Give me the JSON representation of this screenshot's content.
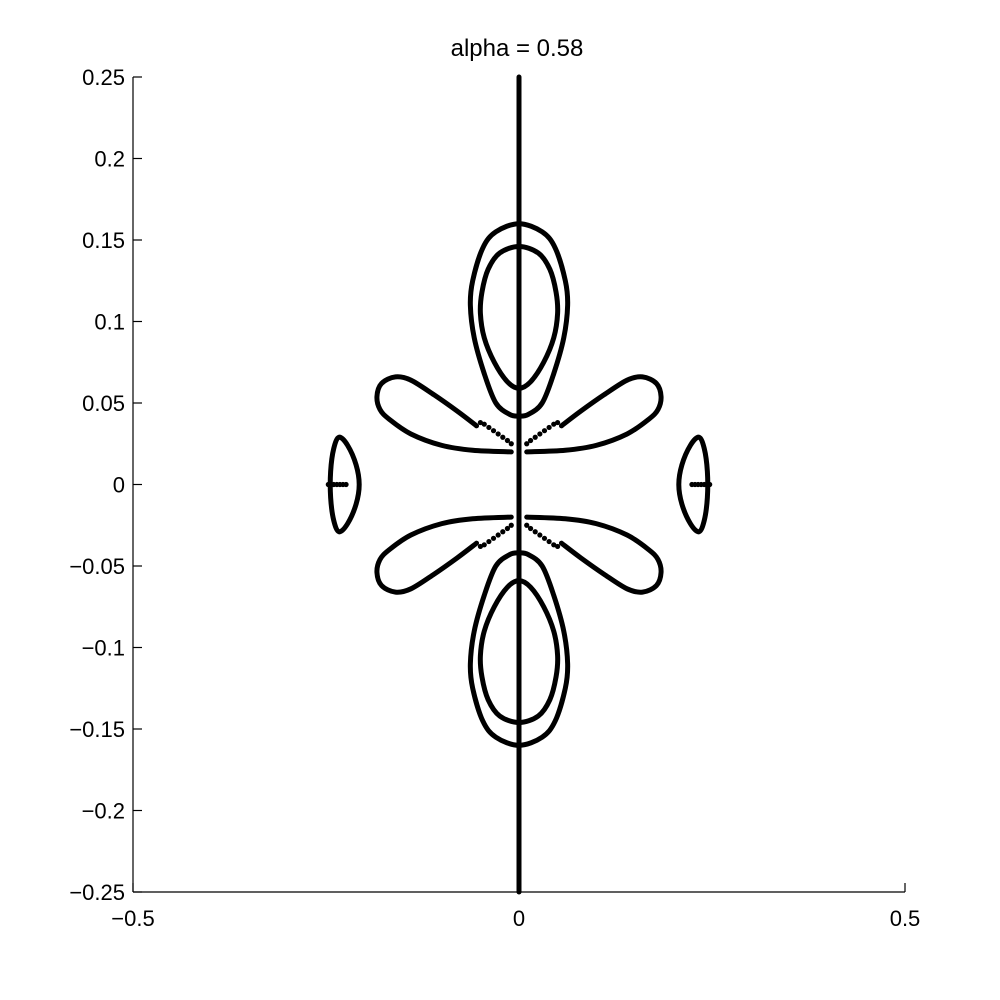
{
  "chart_data": {
    "type": "line",
    "title": "alpha = 0.58",
    "xlabel": "",
    "ylabel": "",
    "xlim": [
      -0.5,
      0.5
    ],
    "ylim": [
      -0.25,
      0.25
    ],
    "grid": false,
    "x_ticks": [
      -0.5,
      0,
      0.5
    ],
    "x_tick_labels": [
      "−0.5",
      "0",
      "0.5"
    ],
    "y_ticks": [
      0.25,
      0.2,
      0.15,
      0.1,
      0.05,
      0,
      -0.05,
      -0.1,
      -0.15,
      -0.2,
      -0.25
    ],
    "y_tick_labels": [
      "0.25",
      "0.2",
      "0.15",
      "0.1",
      "0.05",
      "0",
      "−0.05",
      "−0.1",
      "−0.15",
      "−0.2",
      "−0.25"
    ],
    "series": [
      {
        "id": "vertical-line",
        "x": [
          0,
          0
        ],
        "y": [
          -0.25,
          0.25
        ]
      },
      {
        "id": "upper-outer-loop",
        "x": [
          0,
          0.03,
          0.047,
          0.06,
          0.063,
          0.058,
          0.045,
          0.03,
          0.012,
          0,
          -0.012,
          -0.03,
          -0.045,
          -0.058,
          -0.063,
          -0.06,
          -0.047,
          -0.03,
          0
        ],
        "y": [
          0.16,
          0.155,
          0.145,
          0.125,
          0.11,
          0.09,
          0.068,
          0.05,
          0.043,
          0.042,
          0.043,
          0.05,
          0.068,
          0.09,
          0.11,
          0.125,
          0.145,
          0.155,
          0.16
        ]
      },
      {
        "id": "upper-inner-loop",
        "x": [
          0,
          0.025,
          0.04,
          0.048,
          0.05,
          0.045,
          0.032,
          0.015,
          0,
          -0.015,
          -0.032,
          -0.045,
          -0.05,
          -0.048,
          -0.04,
          -0.025,
          0
        ],
        "y": [
          0.146,
          0.142,
          0.132,
          0.118,
          0.105,
          0.09,
          0.075,
          0.063,
          0.059,
          0.063,
          0.075,
          0.09,
          0.105,
          0.118,
          0.132,
          0.142,
          0.146
        ]
      },
      {
        "id": "lower-outer-loop",
        "x": [
          0,
          0.03,
          0.047,
          0.06,
          0.063,
          0.058,
          0.045,
          0.03,
          0.012,
          0,
          -0.012,
          -0.03,
          -0.045,
          -0.058,
          -0.063,
          -0.06,
          -0.047,
          -0.03,
          0
        ],
        "y": [
          -0.16,
          -0.155,
          -0.145,
          -0.125,
          -0.11,
          -0.09,
          -0.068,
          -0.05,
          -0.043,
          -0.042,
          -0.043,
          -0.05,
          -0.068,
          -0.09,
          -0.11,
          -0.125,
          -0.145,
          -0.155,
          -0.16
        ]
      },
      {
        "id": "lower-inner-loop",
        "x": [
          0,
          0.025,
          0.04,
          0.048,
          0.05,
          0.045,
          0.032,
          0.015,
          0,
          -0.015,
          -0.032,
          -0.045,
          -0.05,
          -0.048,
          -0.04,
          -0.025,
          0
        ],
        "y": [
          -0.146,
          -0.142,
          -0.132,
          -0.118,
          -0.105,
          -0.09,
          -0.075,
          -0.063,
          -0.059,
          -0.063,
          -0.075,
          -0.09,
          -0.105,
          -0.118,
          -0.132,
          -0.142,
          -0.146
        ]
      },
      {
        "id": "upper-right-petal",
        "x": [
          0.01,
          0.06,
          0.1,
          0.14,
          0.168,
          0.18,
          0.184,
          0.178,
          0.16,
          0.14,
          0.11,
          0.08,
          0.055
        ],
        "y": [
          0.02,
          0.021,
          0.024,
          0.031,
          0.04,
          0.046,
          0.054,
          0.062,
          0.066,
          0.064,
          0.055,
          0.045,
          0.036
        ]
      },
      {
        "id": "upper-left-petal",
        "x": [
          -0.01,
          -0.06,
          -0.1,
          -0.14,
          -0.168,
          -0.18,
          -0.184,
          -0.178,
          -0.16,
          -0.14,
          -0.11,
          -0.08,
          -0.055
        ],
        "y": [
          0.02,
          0.021,
          0.024,
          0.031,
          0.04,
          0.046,
          0.054,
          0.062,
          0.066,
          0.064,
          0.055,
          0.045,
          0.036
        ]
      },
      {
        "id": "lower-right-petal",
        "x": [
          0.01,
          0.06,
          0.1,
          0.14,
          0.168,
          0.18,
          0.184,
          0.178,
          0.16,
          0.14,
          0.11,
          0.08,
          0.055
        ],
        "y": [
          -0.02,
          -0.021,
          -0.024,
          -0.031,
          -0.04,
          -0.046,
          -0.054,
          -0.062,
          -0.066,
          -0.064,
          -0.055,
          -0.045,
          -0.036
        ]
      },
      {
        "id": "lower-left-petal",
        "x": [
          -0.01,
          -0.06,
          -0.1,
          -0.14,
          -0.168,
          -0.18,
          -0.184,
          -0.178,
          -0.16,
          -0.14,
          -0.11,
          -0.08,
          -0.055
        ],
        "y": [
          -0.02,
          -0.021,
          -0.024,
          -0.031,
          -0.04,
          -0.046,
          -0.054,
          -0.062,
          -0.066,
          -0.064,
          -0.055,
          -0.045,
          -0.036
        ]
      },
      {
        "id": "right-oval",
        "x": [
          0.233,
          0.222,
          0.211,
          0.207,
          0.211,
          0.222,
          0.233,
          0.24,
          0.244,
          0.244,
          0.24,
          0.233
        ],
        "y": [
          0.029,
          0.024,
          0.012,
          0.0,
          -0.012,
          -0.024,
          -0.029,
          -0.022,
          -0.008,
          0.008,
          0.022,
          0.029
        ]
      },
      {
        "id": "left-oval",
        "x": [
          -0.233,
          -0.222,
          -0.211,
          -0.207,
          -0.211,
          -0.222,
          -0.233,
          -0.24,
          -0.244,
          -0.244,
          -0.24,
          -0.233
        ],
        "y": [
          0.029,
          0.024,
          0.012,
          0.0,
          -0.012,
          -0.024,
          -0.029,
          -0.022,
          -0.008,
          0.008,
          0.022,
          0.029
        ]
      }
    ],
    "dotted_series": [
      {
        "id": "dots-ur",
        "x": [
          0.01,
          0.015,
          0.021,
          0.027,
          0.033,
          0.039,
          0.045,
          0.05
        ],
        "y": [
          0.025,
          0.027,
          0.029,
          0.031,
          0.033,
          0.035,
          0.037,
          0.038
        ]
      },
      {
        "id": "dots-ul",
        "x": [
          -0.01,
          -0.015,
          -0.021,
          -0.027,
          -0.033,
          -0.039,
          -0.045,
          -0.05
        ],
        "y": [
          0.025,
          0.027,
          0.029,
          0.031,
          0.033,
          0.035,
          0.037,
          0.038
        ]
      },
      {
        "id": "dots-lr",
        "x": [
          0.01,
          0.015,
          0.021,
          0.027,
          0.033,
          0.039,
          0.045,
          0.05
        ],
        "y": [
          -0.025,
          -0.027,
          -0.029,
          -0.031,
          -0.033,
          -0.035,
          -0.037,
          -0.038
        ]
      },
      {
        "id": "dots-ll",
        "x": [
          -0.01,
          -0.015,
          -0.021,
          -0.027,
          -0.033,
          -0.039,
          -0.045,
          -0.05
        ],
        "y": [
          -0.025,
          -0.027,
          -0.029,
          -0.031,
          -0.033,
          -0.035,
          -0.037,
          -0.038
        ]
      },
      {
        "id": "dots-right-oval",
        "x": [
          0.224,
          0.228,
          0.232,
          0.236,
          0.24,
          0.244,
          0.247
        ],
        "y": [
          0,
          0,
          0,
          0,
          0,
          0,
          0
        ]
      },
      {
        "id": "dots-left-oval",
        "x": [
          -0.224,
          -0.228,
          -0.232,
          -0.236,
          -0.24,
          -0.244,
          -0.247
        ],
        "y": [
          0,
          0,
          0,
          0,
          0,
          0,
          0
        ]
      }
    ]
  }
}
